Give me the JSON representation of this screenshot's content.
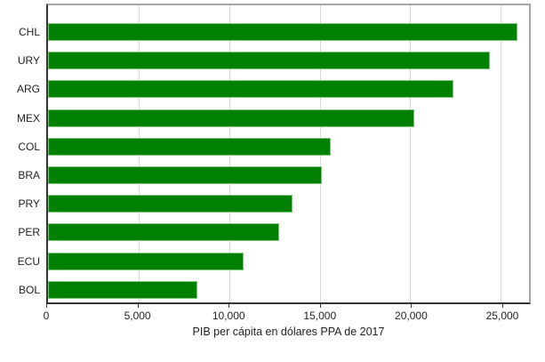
{
  "chart_data": {
    "type": "bar",
    "orientation": "horizontal",
    "categories": [
      "CHL",
      "URY",
      "ARG",
      "MEX",
      "COL",
      "BRA",
      "PRY",
      "PER",
      "ECU",
      "BOL"
    ],
    "values": [
      25900,
      24400,
      22400,
      20250,
      15600,
      15100,
      13500,
      12750,
      10800,
      8250
    ],
    "xlabel": "PIB per cápita en dólares PPA de 2017",
    "x_tick_values": [
      0,
      5000,
      10000,
      15000,
      20000,
      25000
    ],
    "x_tick_labels": [
      "0",
      "5,000",
      "10,000",
      "15,000",
      "20,000",
      "25,000"
    ],
    "xlim": [
      0,
      26560
    ],
    "grid": true,
    "legend": "none",
    "bar_color": "#008000",
    "bar_border_color": "#7dc87d",
    "gridline_color": "#d9d9d9",
    "axis_line_color": "#333333",
    "plot_border_color": "#a6a6a6",
    "text_color": "#1f1f1f"
  }
}
